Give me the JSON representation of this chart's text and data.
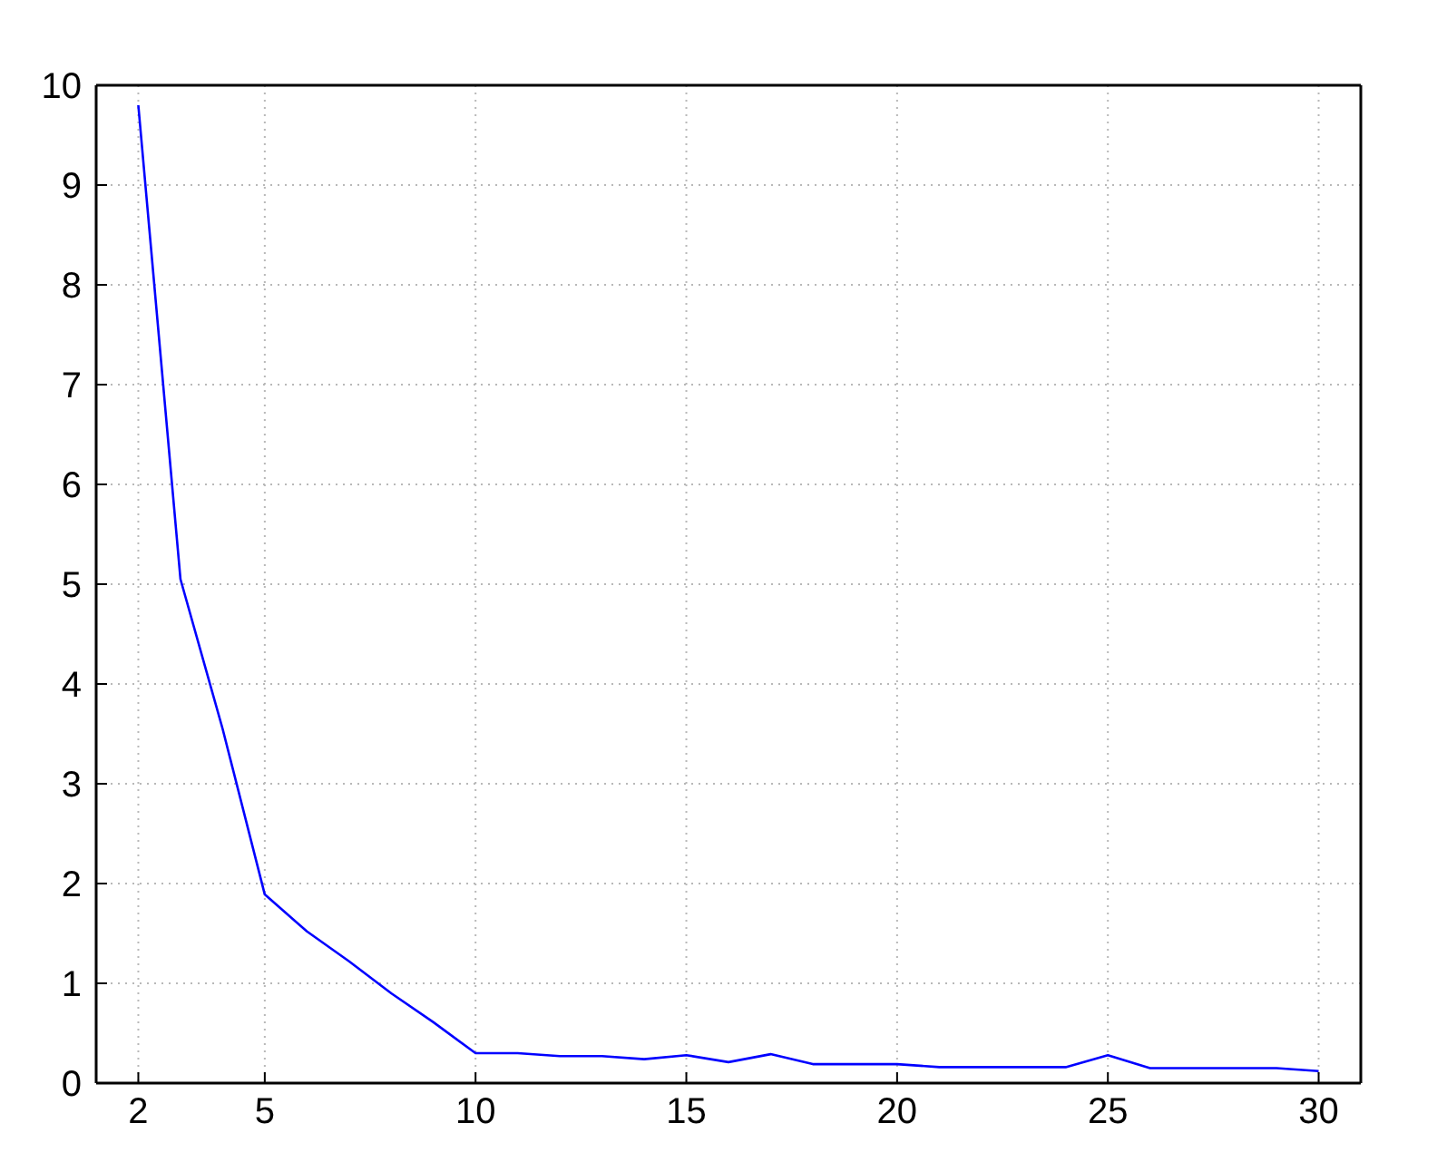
{
  "chart_data": {
    "type": "line",
    "x": [
      2,
      3,
      4,
      5,
      6,
      7,
      8,
      9,
      10,
      11,
      12,
      13,
      14,
      15,
      16,
      17,
      18,
      19,
      20,
      21,
      22,
      23,
      24,
      25,
      26,
      27,
      28,
      29,
      30
    ],
    "series": [
      {
        "color": "#0000ff",
        "values": [
          9.8,
          5.05,
          3.55,
          1.89,
          1.52,
          1.22,
          0.9,
          0.61,
          0.3,
          0.3,
          0.27,
          0.27,
          0.24,
          0.28,
          0.21,
          0.29,
          0.19,
          0.19,
          0.19,
          0.16,
          0.16,
          0.16,
          0.16,
          0.28,
          0.15,
          0.15,
          0.15,
          0.15,
          0.12
        ]
      }
    ],
    "xlim": [
      1,
      31
    ],
    "ylim": [
      0,
      10
    ],
    "xticks": [
      2,
      5,
      10,
      15,
      20,
      25,
      30
    ],
    "yticks": [
      0,
      1,
      2,
      3,
      4,
      5,
      6,
      7,
      8,
      9,
      10
    ],
    "grid": true
  }
}
